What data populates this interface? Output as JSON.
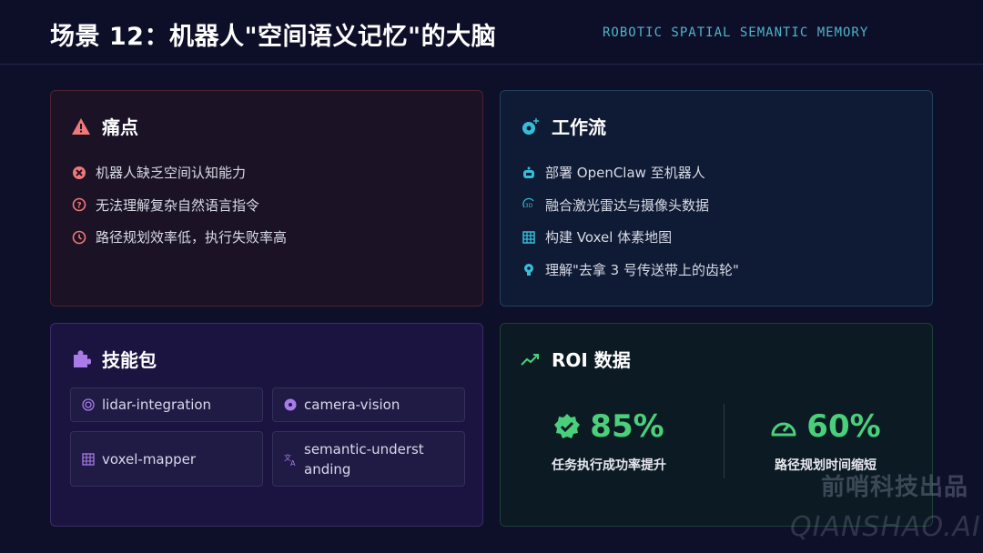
{
  "header": {
    "title": "场景 12：机器人\"空间语义记忆\"的大脑",
    "subtitle": "ROBOTIC SPATIAL SEMANTIC MEMORY"
  },
  "pain": {
    "title": "痛点",
    "icon": "warning-icon",
    "items": [
      {
        "icon": "x-circle-icon",
        "text": "机器人缺乏空间认知能力"
      },
      {
        "icon": "question-circle-icon",
        "text": "无法理解复杂自然语言指令"
      },
      {
        "icon": "clock-icon",
        "text": "路径规划效率低，执行失败率高"
      }
    ]
  },
  "workflow": {
    "title": "工作流",
    "icon": "gears-icon",
    "items": [
      {
        "icon": "robot-icon",
        "text": "部署 OpenClaw 至机器人"
      },
      {
        "icon": "3d-rotate-icon",
        "text": "融合激光雷达与摄像头数据"
      },
      {
        "icon": "grid-icon",
        "text": "构建 Voxel 体素地图"
      },
      {
        "icon": "brain-head-icon",
        "text": "理解\"去拿 3 号传送带上的齿轮\""
      }
    ]
  },
  "skills": {
    "title": "技能包",
    "icon": "puzzle-icon",
    "items": [
      {
        "icon": "radar-icon",
        "text": "lidar-integration"
      },
      {
        "icon": "camera-aperture-icon",
        "text": "camera-vision"
      },
      {
        "icon": "grid-icon",
        "text": "voxel-mapper"
      },
      {
        "icon": "translate-icon",
        "text": "semantic-understanding"
      }
    ]
  },
  "roi": {
    "title": "ROI 数据",
    "icon": "trending-up-icon",
    "stats": [
      {
        "icon": "verified-badge-icon",
        "value": "85%",
        "label": "任务执行成功率提升"
      },
      {
        "icon": "speedometer-icon",
        "value": "60%",
        "label": "路径规划时间缩短"
      }
    ]
  },
  "watermark": {
    "line1": "前哨科技出品",
    "line2": "QIANSHAO.AI"
  },
  "colors": {
    "background": "#0e1029",
    "pain": "#f07878",
    "workflow": "#38bdd8",
    "skills": "#a87be8",
    "roi": "#4ad07a",
    "subtitle": "#4fb3c9"
  }
}
